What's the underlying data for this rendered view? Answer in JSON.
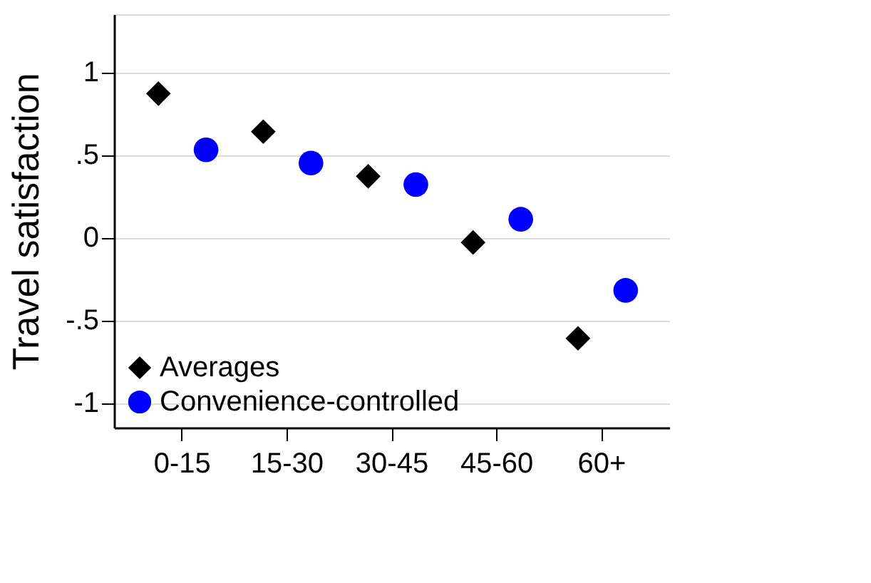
{
  "chart_data": {
    "type": "scatter",
    "ylabel": "Travel satisfaction",
    "categories": [
      "0-15",
      "15-30",
      "30-45",
      "45-60",
      "60+"
    ],
    "series": [
      {
        "name": "Averages",
        "color": "#000000",
        "marker": "diamond",
        "values": [
          0.87,
          0.64,
          0.37,
          -0.03,
          -0.61
        ]
      },
      {
        "name": "Convenience-controlled",
        "color": "#0000ff",
        "marker": "circle",
        "values": [
          0.53,
          0.45,
          0.32,
          0.11,
          -0.32
        ]
      }
    ],
    "ylim": [
      -1.15,
      1.35
    ],
    "yticks": [
      {
        "value": -1,
        "label": "-1"
      },
      {
        "value": -0.5,
        "label": "-.5"
      },
      0,
      {
        "value": 0.5,
        "label": ".5"
      },
      1
    ],
    "grid": "y",
    "legend": "bottom left"
  }
}
